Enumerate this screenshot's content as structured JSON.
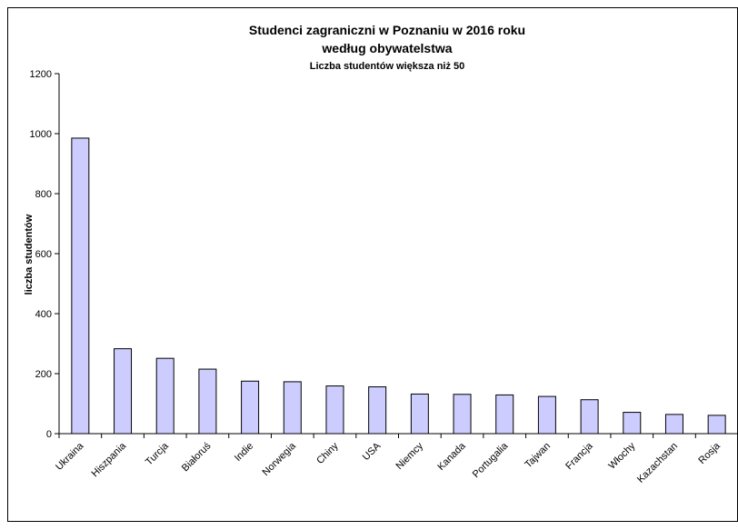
{
  "chart_data": {
    "type": "bar",
    "title": "Studenci zagraniczni w Poznaniu w 2016 roku",
    "title_line2": "według obywatelstwa",
    "subtitle": "Liczba studentów większa niż 50",
    "xlabel": "",
    "ylabel": "liczba studentów",
    "ylim": [
      0,
      1200
    ],
    "yticks": [
      "0",
      "200",
      "400",
      "600",
      "800",
      "1000",
      "1200"
    ],
    "grid": false,
    "bar_color": "#ccccff",
    "categories": [
      "Ukraina",
      "Hiszpania",
      "Turcja",
      "Białoruś",
      "Indie",
      "Norwegia",
      "Chiny",
      "USA",
      "Niemcy",
      "Kanada",
      "Portugalia",
      "Tajwan",
      "Francja",
      "Włochy",
      "Kazachstan",
      "Rosja"
    ],
    "values": [
      985,
      283,
      251,
      215,
      175,
      173,
      159,
      156,
      132,
      131,
      129,
      124,
      113,
      71,
      64,
      61
    ]
  }
}
